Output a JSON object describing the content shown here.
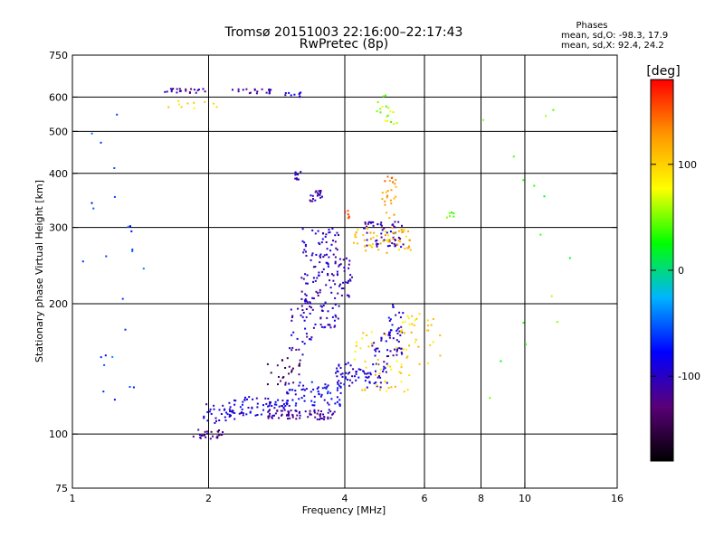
{
  "header": {
    "title_line1": "Tromsø 20151003 22:16:00–22:17:43",
    "title_line2": "RwPretec (8p)"
  },
  "stats": {
    "heading": "Phases",
    "line_o": "mean, sd,O: -98.3, 17.9",
    "line_x": "mean, sd,X:  92.4, 24.2"
  },
  "colorbar": {
    "unit_label": "[deg]",
    "ticks": [
      {
        "value": 100,
        "label": "100"
      },
      {
        "value": 0,
        "label": "0"
      },
      {
        "value": -100,
        "label": "-100"
      }
    ],
    "range": [
      -180,
      180
    ],
    "colors": [
      "#000000",
      "#5a0078",
      "#0000ff",
      "#00b4ff",
      "#00ff00",
      "#ffff00",
      "#ff9600",
      "#ff0000"
    ]
  },
  "chart_data": {
    "type": "scatter",
    "title": "Tromsø 20151003 22:16:00–22:17:43",
    "subtitle": "RwPretec (8p)",
    "xlabel": "Frequency [MHz]",
    "ylabel": "Stationary phase Virtual Height [km]",
    "x_scale": "log",
    "y_scale": "log",
    "xlim": [
      1,
      16
    ],
    "ylim": [
      75,
      750
    ],
    "grid": true,
    "x_ticks": [
      1,
      2,
      4,
      6,
      8,
      10,
      16
    ],
    "x_tick_labels": [
      "1",
      "2",
      "4",
      "6",
      "8",
      "10",
      "16"
    ],
    "x_gridlines": [
      2,
      4,
      6,
      8,
      10
    ],
    "y_ticks": [
      75,
      100,
      200,
      300,
      400,
      500,
      600,
      750
    ],
    "y_tick_labels": [
      "75",
      "100",
      "200",
      "300",
      "400",
      "500",
      "600",
      "750"
    ],
    "y_gridlines": [
      100,
      200,
      300,
      400,
      500,
      600
    ],
    "series": [
      {
        "name": "",
        "color_by": "phase [deg]",
        "clusters": [
          {
            "x": [
              1.85,
              2.15
            ],
            "y": [
              97,
              103
            ],
            "phase": -120,
            "n": 25
          },
          {
            "x": [
              1.95,
              2.3
            ],
            "y": [
              106,
              118
            ],
            "phase": -95,
            "n": 30
          },
          {
            "x": [
              2.2,
              3.0
            ],
            "y": [
              110,
              122
            ],
            "phase": -90,
            "n": 70
          },
          {
            "x": [
              2.7,
              3.8
            ],
            "y": [
              108,
              114
            ],
            "phase": -115,
            "n": 70
          },
          {
            "x": [
              2.9,
              4.0
            ],
            "y": [
              116,
              132
            ],
            "phase": -85,
            "n": 70
          },
          {
            "x": [
              3.8,
              5.0
            ],
            "y": [
              128,
              146
            ],
            "phase": -95,
            "n": 70
          },
          {
            "x": [
              4.6,
              5.4
            ],
            "y": [
              145,
              175
            ],
            "phase": -100,
            "n": 40
          },
          {
            "x": [
              5.0,
              5.4
            ],
            "y": [
              165,
              200
            ],
            "phase": -90,
            "n": 20
          },
          {
            "x": [
              4.2,
              5.6
            ],
            "y": [
              125,
              175
            ],
            "phase": 95,
            "n": 50
          },
          {
            "x": [
              5.3,
              6.5
            ],
            "y": [
              145,
              190
            ],
            "phase": 100,
            "n": 30
          },
          {
            "x": [
              2.7,
              3.3
            ],
            "y": [
              130,
              150
            ],
            "phase": -140,
            "n": 25
          },
          {
            "x": [
              3.0,
              3.4
            ],
            "y": [
              152,
              200
            ],
            "phase": -100,
            "n": 25
          },
          {
            "x": [
              3.2,
              3.9
            ],
            "y": [
              175,
              300
            ],
            "phase": -100,
            "n": 150
          },
          {
            "x": [
              3.9,
              4.15
            ],
            "y": [
              205,
              255
            ],
            "phase": -105,
            "n": 25
          },
          {
            "x": [
              3.35,
              3.6
            ],
            "y": [
              345,
              365
            ],
            "phase": -110,
            "n": 20
          },
          {
            "x": [
              3.1,
              3.2
            ],
            "y": [
              385,
              405
            ],
            "phase": -110,
            "n": 10
          },
          {
            "x": [
              4.4,
              5.4
            ],
            "y": [
              270,
              310
            ],
            "phase": -105,
            "n": 60
          },
          {
            "x": [
              4.1,
              5.6
            ],
            "y": [
              262,
              300
            ],
            "phase": 110,
            "n": 60
          },
          {
            "x": [
              4.8,
              5.2
            ],
            "y": [
              310,
              395
            ],
            "phase": 130,
            "n": 25
          },
          {
            "x": [
              4.0,
              4.1
            ],
            "y": [
              315,
              330
            ],
            "phase": 150,
            "n": 6
          },
          {
            "x": [
              1.6,
              2.0
            ],
            "y": [
              613,
              628
            ],
            "phase": -115,
            "n": 22
          },
          {
            "x": [
              2.2,
              2.75
            ],
            "y": [
              610,
              626
            ],
            "phase": -110,
            "n": 20
          },
          {
            "x": [
              2.9,
              3.35
            ],
            "y": [
              600,
              615
            ],
            "phase": -100,
            "n": 10
          },
          {
            "x": [
              1.5,
              2.1
            ],
            "y": [
              565,
              590
            ],
            "phase": 100,
            "n": 10
          },
          {
            "x": [
              4.7,
              5.3
            ],
            "y": [
              520,
              610
            ],
            "phase": 60,
            "n": 18
          },
          {
            "x": [
              6.7,
              7.0
            ],
            "y": [
              305,
              325
            ],
            "phase": 40,
            "n": 6
          },
          {
            "x": [
              1.05,
              1.45
            ],
            "y": [
              110,
              600
            ],
            "phase": -60,
            "n": 25
          },
          {
            "x": [
              8.0,
              13.0
            ],
            "y": [
              100,
              620
            ],
            "phase": 40,
            "n": 15
          }
        ]
      }
    ]
  }
}
